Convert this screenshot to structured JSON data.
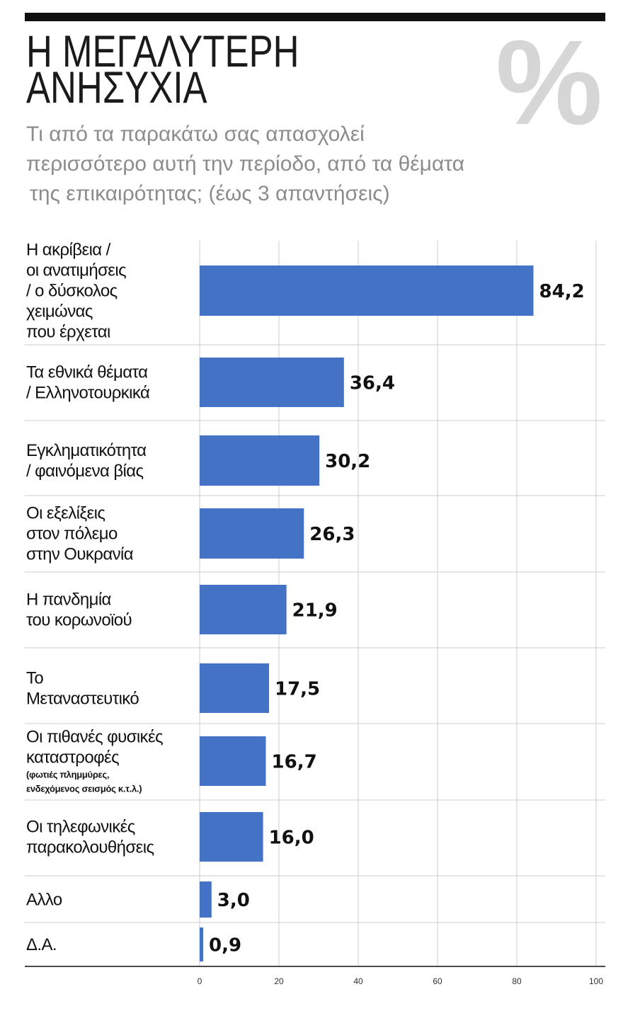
{
  "header": {
    "percent_symbol": "%"
  },
  "colors": {
    "bar": "#4472c4",
    "text": "#1a1a1a",
    "subtitle": "#8c8c8c",
    "percent_symbol": "#d6d6d6",
    "grid": "#cccccc",
    "axis": "#111111",
    "top_rule": "#111111"
  },
  "chart_data": {
    "type": "bar",
    "title_lines": [
      "Η ΜΕΓΑΛΥΤΕΡΗ",
      "ΑΝΗΣΥΧΙΑ"
    ],
    "subtitle_lines": [
      "Τι από τα παρακάτω σας απασχολεί",
      "περισσότερο αυτή την περίοδο, από τα θέματα",
      "της επικαιρότητας; (έως 3 απαντήσεις)"
    ],
    "categories": [
      {
        "lines": [
          "Η ακρίβεια /",
          "οι ανατιμήσεις",
          "/ ο δύσκολος",
          "χειμώνας",
          "που έρχεται"
        ]
      },
      {
        "lines": [
          "Τα εθνικά θέματα",
          "/ Ελληνοτουρκικά"
        ]
      },
      {
        "lines": [
          "Εγκληματικότητα",
          "/ φαινόμενα βίας"
        ]
      },
      {
        "lines": [
          "Οι εξελίξεις",
          "στον πόλεμο",
          "στην Ουκρανία"
        ]
      },
      {
        "lines": [
          "Η πανδημία",
          "του κορωνοϊού"
        ]
      },
      {
        "lines": [
          "Το",
          "Μεταναστευτικό"
        ]
      },
      {
        "lines": [
          "Οι πιθανές φυσικές",
          "καταστροφές"
        ],
        "note_lines": [
          "(φωτιές πλημμύρες,",
          "ενδεχόμενος σεισμός κ.τ.λ.)"
        ]
      },
      {
        "lines": [
          "Οι τηλεφωνικές",
          "παρακολουθήσεις"
        ]
      },
      {
        "lines": [
          "Αλλο"
        ]
      },
      {
        "lines": [
          "Δ.Α."
        ]
      }
    ],
    "values": [
      84.2,
      36.4,
      30.2,
      26.3,
      21.9,
      17.5,
      16.7,
      16.0,
      3.0,
      0.9
    ],
    "value_labels": [
      "84,2",
      "36,4",
      "30,2",
      "26,3",
      "21,9",
      "17,5",
      "16,7",
      "16,0",
      "3,0",
      "0,9"
    ],
    "xlim": [
      0,
      100
    ],
    "xticks": [
      0,
      20,
      40,
      60,
      80,
      100
    ],
    "xtick_labels": [
      "0",
      "20",
      "40",
      "60",
      "80",
      "100"
    ],
    "grid": true
  }
}
